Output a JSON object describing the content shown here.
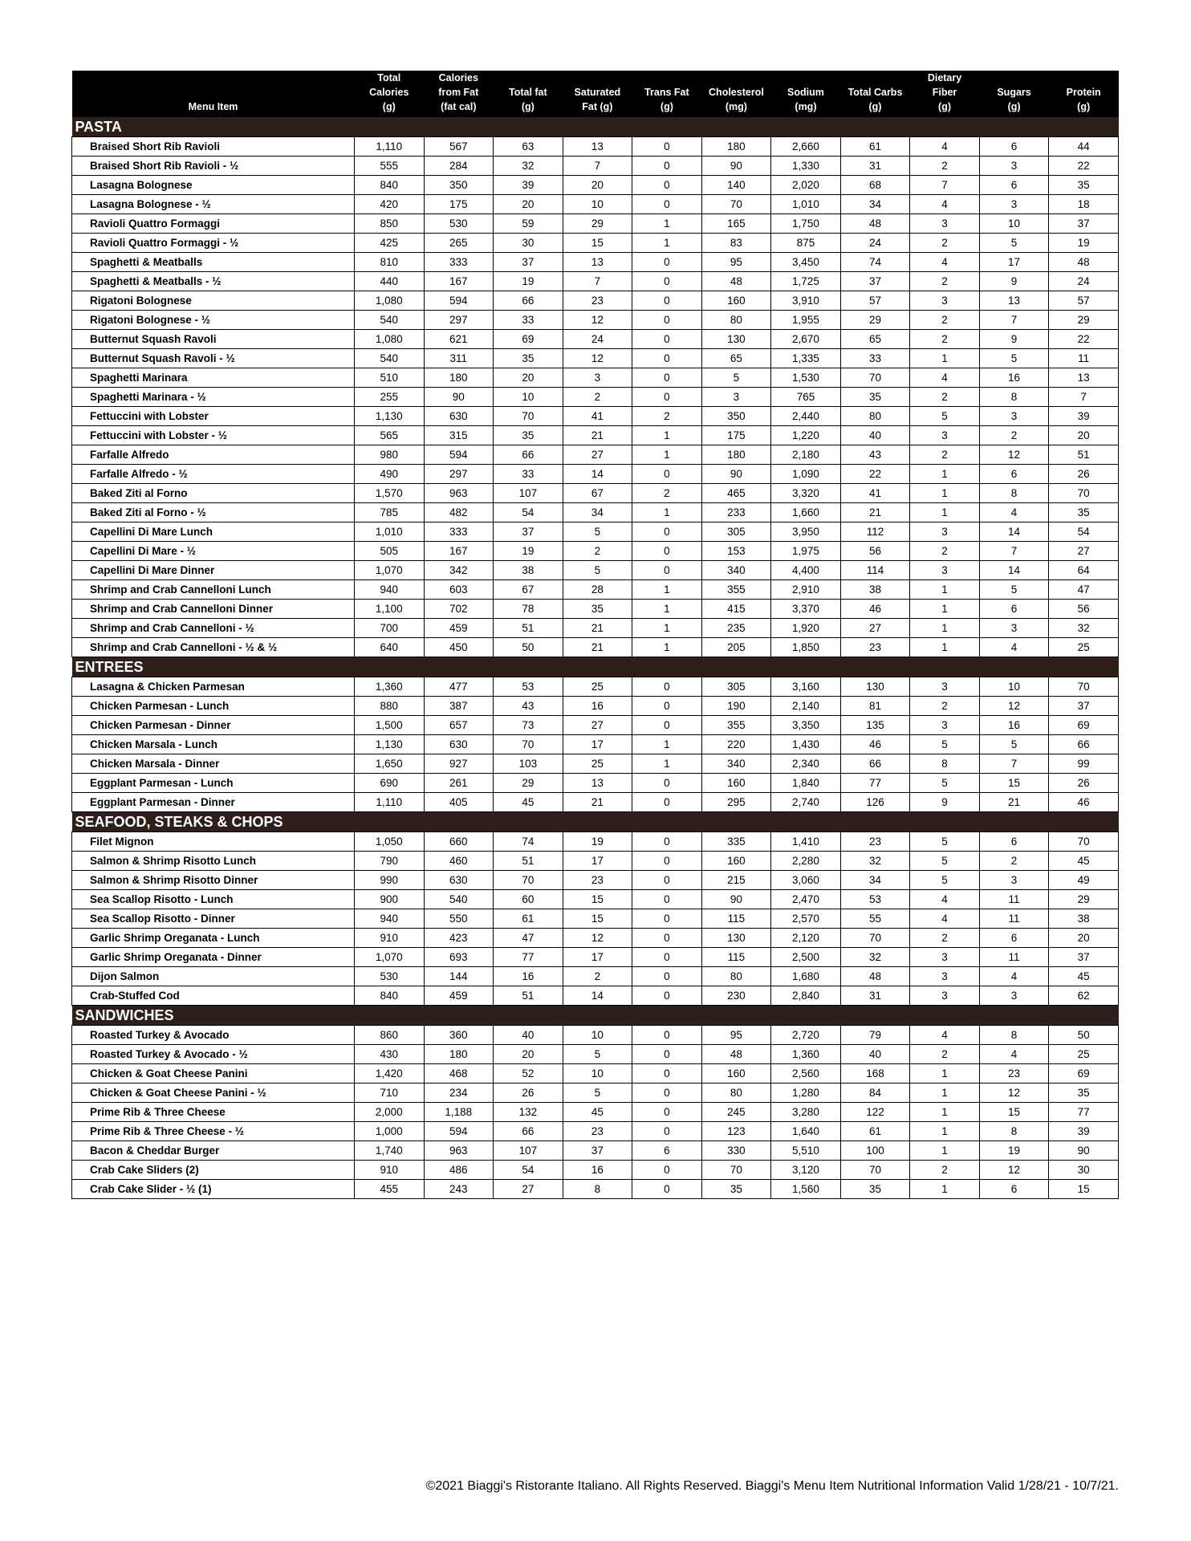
{
  "columns": [
    "Menu Item",
    "Total\nCalories\n(g)",
    "Calories\nfrom Fat\n(fat cal)",
    "Total fat\n(g)",
    "Saturated\nFat (g)",
    "Trans Fat\n(g)",
    "Cholesterol\n(mg)",
    "Sodium\n(mg)",
    "Total Carbs\n(g)",
    "Dietary\nFiber\n(g)",
    "Sugars\n(g)",
    "Protein\n(g)"
  ],
  "colors": {
    "header_bg": "#000000",
    "section_bg": "#2e1f1a"
  },
  "sections": [
    {
      "title": "PASTA",
      "rows": [
        [
          "Braised Short Rib Ravioli",
          "1,110",
          "567",
          "63",
          "13",
          "0",
          "180",
          "2,660",
          "61",
          "4",
          "6",
          "44"
        ],
        [
          "Braised Short Rib Ravioli - ½",
          "555",
          "284",
          "32",
          "7",
          "0",
          "90",
          "1,330",
          "31",
          "2",
          "3",
          "22"
        ],
        [
          "Lasagna Bolognese",
          "840",
          "350",
          "39",
          "20",
          "0",
          "140",
          "2,020",
          "68",
          "7",
          "6",
          "35"
        ],
        [
          "Lasagna Bolognese - ½",
          "420",
          "175",
          "20",
          "10",
          "0",
          "70",
          "1,010",
          "34",
          "4",
          "3",
          "18"
        ],
        [
          "Ravioli Quattro Formaggi",
          "850",
          "530",
          "59",
          "29",
          "1",
          "165",
          "1,750",
          "48",
          "3",
          "10",
          "37"
        ],
        [
          "Ravioli Quattro Formaggi - ½",
          "425",
          "265",
          "30",
          "15",
          "1",
          "83",
          "875",
          "24",
          "2",
          "5",
          "19"
        ],
        [
          "Spaghetti & Meatballs",
          "810",
          "333",
          "37",
          "13",
          "0",
          "95",
          "3,450",
          "74",
          "4",
          "17",
          "48"
        ],
        [
          "Spaghetti & Meatballs - ½",
          "440",
          "167",
          "19",
          "7",
          "0",
          "48",
          "1,725",
          "37",
          "2",
          "9",
          "24"
        ],
        [
          "Rigatoni Bolognese",
          "1,080",
          "594",
          "66",
          "23",
          "0",
          "160",
          "3,910",
          "57",
          "3",
          "13",
          "57"
        ],
        [
          "Rigatoni Bolognese - ½",
          "540",
          "297",
          "33",
          "12",
          "0",
          "80",
          "1,955",
          "29",
          "2",
          "7",
          "29"
        ],
        [
          "Butternut Squash Ravoli",
          "1,080",
          "621",
          "69",
          "24",
          "0",
          "130",
          "2,670",
          "65",
          "2",
          "9",
          "22"
        ],
        [
          "Butternut Squash Ravoli - ½",
          "540",
          "311",
          "35",
          "12",
          "0",
          "65",
          "1,335",
          "33",
          "1",
          "5",
          "11"
        ],
        [
          "Spaghetti Marinara",
          "510",
          "180",
          "20",
          "3",
          "0",
          "5",
          "1,530",
          "70",
          "4",
          "16",
          "13"
        ],
        [
          "Spaghetti Marinara - ½",
          "255",
          "90",
          "10",
          "2",
          "0",
          "3",
          "765",
          "35",
          "2",
          "8",
          "7"
        ],
        [
          "Fettuccini with Lobster",
          "1,130",
          "630",
          "70",
          "41",
          "2",
          "350",
          "2,440",
          "80",
          "5",
          "3",
          "39"
        ],
        [
          "Fettuccini with Lobster - ½",
          "565",
          "315",
          "35",
          "21",
          "1",
          "175",
          "1,220",
          "40",
          "3",
          "2",
          "20"
        ],
        [
          "Farfalle Alfredo",
          "980",
          "594",
          "66",
          "27",
          "1",
          "180",
          "2,180",
          "43",
          "2",
          "12",
          "51"
        ],
        [
          "Farfalle Alfredo - ½",
          "490",
          "297",
          "33",
          "14",
          "0",
          "90",
          "1,090",
          "22",
          "1",
          "6",
          "26"
        ],
        [
          "Baked Ziti al Forno",
          "1,570",
          "963",
          "107",
          "67",
          "2",
          "465",
          "3,320",
          "41",
          "1",
          "8",
          "70"
        ],
        [
          "Baked Ziti al Forno - ½",
          "785",
          "482",
          "54",
          "34",
          "1",
          "233",
          "1,660",
          "21",
          "1",
          "4",
          "35"
        ],
        [
          "Capellini Di Mare Lunch",
          "1,010",
          "333",
          "37",
          "5",
          "0",
          "305",
          "3,950",
          "112",
          "3",
          "14",
          "54"
        ],
        [
          "Capellini Di Mare - ½",
          "505",
          "167",
          "19",
          "2",
          "0",
          "153",
          "1,975",
          "56",
          "2",
          "7",
          "27"
        ],
        [
          "Capellini Di Mare Dinner",
          "1,070",
          "342",
          "38",
          "5",
          "0",
          "340",
          "4,400",
          "114",
          "3",
          "14",
          "64"
        ],
        [
          "Shrimp and Crab Cannelloni Lunch",
          "940",
          "603",
          "67",
          "28",
          "1",
          "355",
          "2,910",
          "38",
          "1",
          "5",
          "47"
        ],
        [
          "Shrimp and Crab Cannelloni Dinner",
          "1,100",
          "702",
          "78",
          "35",
          "1",
          "415",
          "3,370",
          "46",
          "1",
          "6",
          "56"
        ],
        [
          "Shrimp and Crab Cannelloni - ½",
          "700",
          "459",
          "51",
          "21",
          "1",
          "235",
          "1,920",
          "27",
          "1",
          "3",
          "32"
        ],
        [
          "Shrimp and Crab Cannelloni - ½ & ½",
          "640",
          "450",
          "50",
          "21",
          "1",
          "205",
          "1,850",
          "23",
          "1",
          "4",
          "25"
        ]
      ]
    },
    {
      "title": "ENTREES",
      "rows": [
        [
          "Lasagna & Chicken Parmesan",
          "1,360",
          "477",
          "53",
          "25",
          "0",
          "305",
          "3,160",
          "130",
          "3",
          "10",
          "70"
        ],
        [
          "Chicken Parmesan - Lunch",
          "880",
          "387",
          "43",
          "16",
          "0",
          "190",
          "2,140",
          "81",
          "2",
          "12",
          "37"
        ],
        [
          "Chicken Parmesan - Dinner",
          "1,500",
          "657",
          "73",
          "27",
          "0",
          "355",
          "3,350",
          "135",
          "3",
          "16",
          "69"
        ],
        [
          "Chicken Marsala - Lunch",
          "1,130",
          "630",
          "70",
          "17",
          "1",
          "220",
          "1,430",
          "46",
          "5",
          "5",
          "66"
        ],
        [
          "Chicken Marsala - Dinner",
          "1,650",
          "927",
          "103",
          "25",
          "1",
          "340",
          "2,340",
          "66",
          "8",
          "7",
          "99"
        ],
        [
          "Eggplant Parmesan - Lunch",
          "690",
          "261",
          "29",
          "13",
          "0",
          "160",
          "1,840",
          "77",
          "5",
          "15",
          "26"
        ],
        [
          "Eggplant Parmesan - Dinner",
          "1,110",
          "405",
          "45",
          "21",
          "0",
          "295",
          "2,740",
          "126",
          "9",
          "21",
          "46"
        ]
      ]
    },
    {
      "title": "SEAFOOD, STEAKS & CHOPS",
      "rows": [
        [
          "Filet Mignon",
          "1,050",
          "660",
          "74",
          "19",
          "0",
          "335",
          "1,410",
          "23",
          "5",
          "6",
          "70"
        ],
        [
          "Salmon & Shrimp Risotto Lunch",
          "790",
          "460",
          "51",
          "17",
          "0",
          "160",
          "2,280",
          "32",
          "5",
          "2",
          "45"
        ],
        [
          "Salmon & Shrimp Risotto Dinner",
          "990",
          "630",
          "70",
          "23",
          "0",
          "215",
          "3,060",
          "34",
          "5",
          "3",
          "49"
        ],
        [
          "Sea Scallop Risotto - Lunch",
          "900",
          "540",
          "60",
          "15",
          "0",
          "90",
          "2,470",
          "53",
          "4",
          "11",
          "29"
        ],
        [
          "Sea Scallop Risotto - Dinner",
          "940",
          "550",
          "61",
          "15",
          "0",
          "115",
          "2,570",
          "55",
          "4",
          "11",
          "38"
        ],
        [
          "Garlic Shrimp Oreganata - Lunch",
          "910",
          "423",
          "47",
          "12",
          "0",
          "130",
          "2,120",
          "70",
          "2",
          "6",
          "20"
        ],
        [
          "Garlic Shrimp Oreganata - Dinner",
          "1,070",
          "693",
          "77",
          "17",
          "0",
          "115",
          "2,500",
          "32",
          "3",
          "11",
          "37"
        ],
        [
          "Dijon Salmon",
          "530",
          "144",
          "16",
          "2",
          "0",
          "80",
          "1,680",
          "48",
          "3",
          "4",
          "45"
        ],
        [
          "Crab-Stuffed Cod",
          "840",
          "459",
          "51",
          "14",
          "0",
          "230",
          "2,840",
          "31",
          "3",
          "3",
          "62"
        ]
      ]
    },
    {
      "title": "SANDWICHES",
      "rows": [
        [
          "Roasted Turkey & Avocado",
          "860",
          "360",
          "40",
          "10",
          "0",
          "95",
          "2,720",
          "79",
          "4",
          "8",
          "50"
        ],
        [
          "Roasted Turkey & Avocado - ½",
          "430",
          "180",
          "20",
          "5",
          "0",
          "48",
          "1,360",
          "40",
          "2",
          "4",
          "25"
        ],
        [
          "Chicken & Goat Cheese Panini",
          "1,420",
          "468",
          "52",
          "10",
          "0",
          "160",
          "2,560",
          "168",
          "1",
          "23",
          "69"
        ],
        [
          "Chicken & Goat Cheese Panini - ½",
          "710",
          "234",
          "26",
          "5",
          "0",
          "80",
          "1,280",
          "84",
          "1",
          "12",
          "35"
        ],
        [
          "Prime Rib & Three Cheese",
          "2,000",
          "1,188",
          "132",
          "45",
          "0",
          "245",
          "3,280",
          "122",
          "1",
          "15",
          "77"
        ],
        [
          "Prime Rib & Three Cheese - ½",
          "1,000",
          "594",
          "66",
          "23",
          "0",
          "123",
          "1,640",
          "61",
          "1",
          "8",
          "39"
        ],
        [
          "Bacon & Cheddar Burger",
          "1,740",
          "963",
          "107",
          "37",
          "6",
          "330",
          "5,510",
          "100",
          "1",
          "19",
          "90"
        ],
        [
          "Crab Cake Sliders (2)",
          "910",
          "486",
          "54",
          "16",
          "0",
          "70",
          "3,120",
          "70",
          "2",
          "12",
          "30"
        ],
        [
          "Crab Cake Slider - ½ (1)",
          "455",
          "243",
          "27",
          "8",
          "0",
          "35",
          "1,560",
          "35",
          "1",
          "6",
          "15"
        ]
      ]
    }
  ],
  "footer": "©2021 Biaggi's Ristorante Italiano. All Rights Reserved. Biaggi's Menu Item Nutritional Information Valid 1/28/21 - 10/7/21."
}
